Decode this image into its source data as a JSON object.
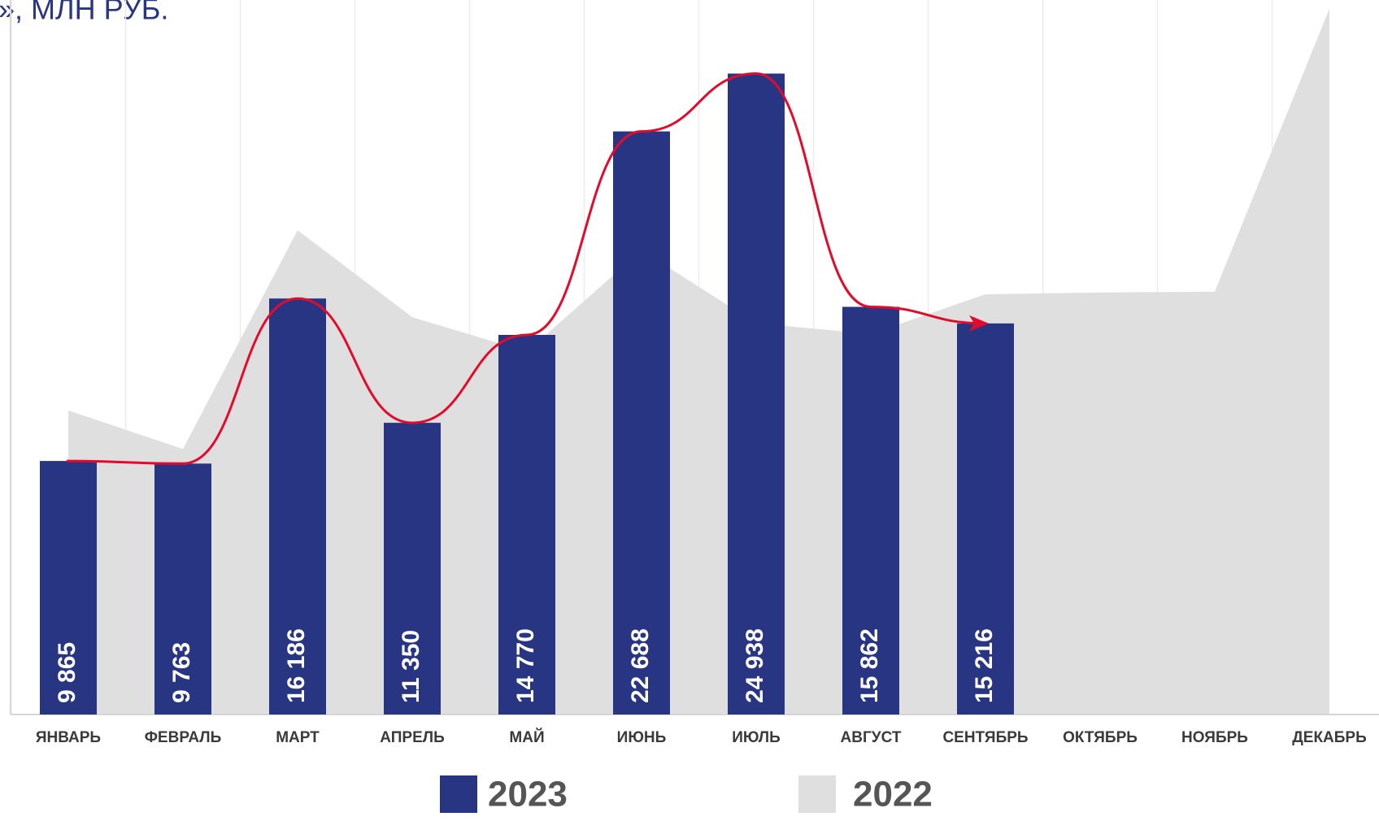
{
  "chart_data": {
    "type": "bar",
    "title": "О», МЛН РУБ.",
    "categories": [
      "ЯНВАРЬ",
      "ФЕВРАЛЬ",
      "МАРТ",
      "АПРЕЛЬ",
      "МАЙ",
      "ИЮНЬ",
      "ИЮЛЬ",
      "АВГУСТ",
      "СЕНТЯБРЬ",
      "ОКТЯБРЬ",
      "НОЯБРЬ",
      "ДЕКАБРЬ"
    ],
    "series": [
      {
        "name": "2023",
        "color": "#283583",
        "values": [
          9865,
          9763,
          16186,
          11350,
          14770,
          22688,
          24938,
          15862,
          15216,
          null,
          null,
          null
        ],
        "value_labels": [
          "9 865",
          "9 763",
          "16 186",
          "11 350",
          "14 770",
          "22 688",
          "24 938",
          "15 862",
          "15 216",
          null,
          null,
          null
        ]
      },
      {
        "name": "2022",
        "color": "#dfdfdf",
        "values": [
          11830,
          10330,
          18840,
          15460,
          14120,
          18060,
          15220,
          14810,
          16350,
          16420,
          16450,
          27460
        ]
      }
    ],
    "trend_color": "#e30b2c",
    "ylim": [
      0,
      27800
    ]
  }
}
